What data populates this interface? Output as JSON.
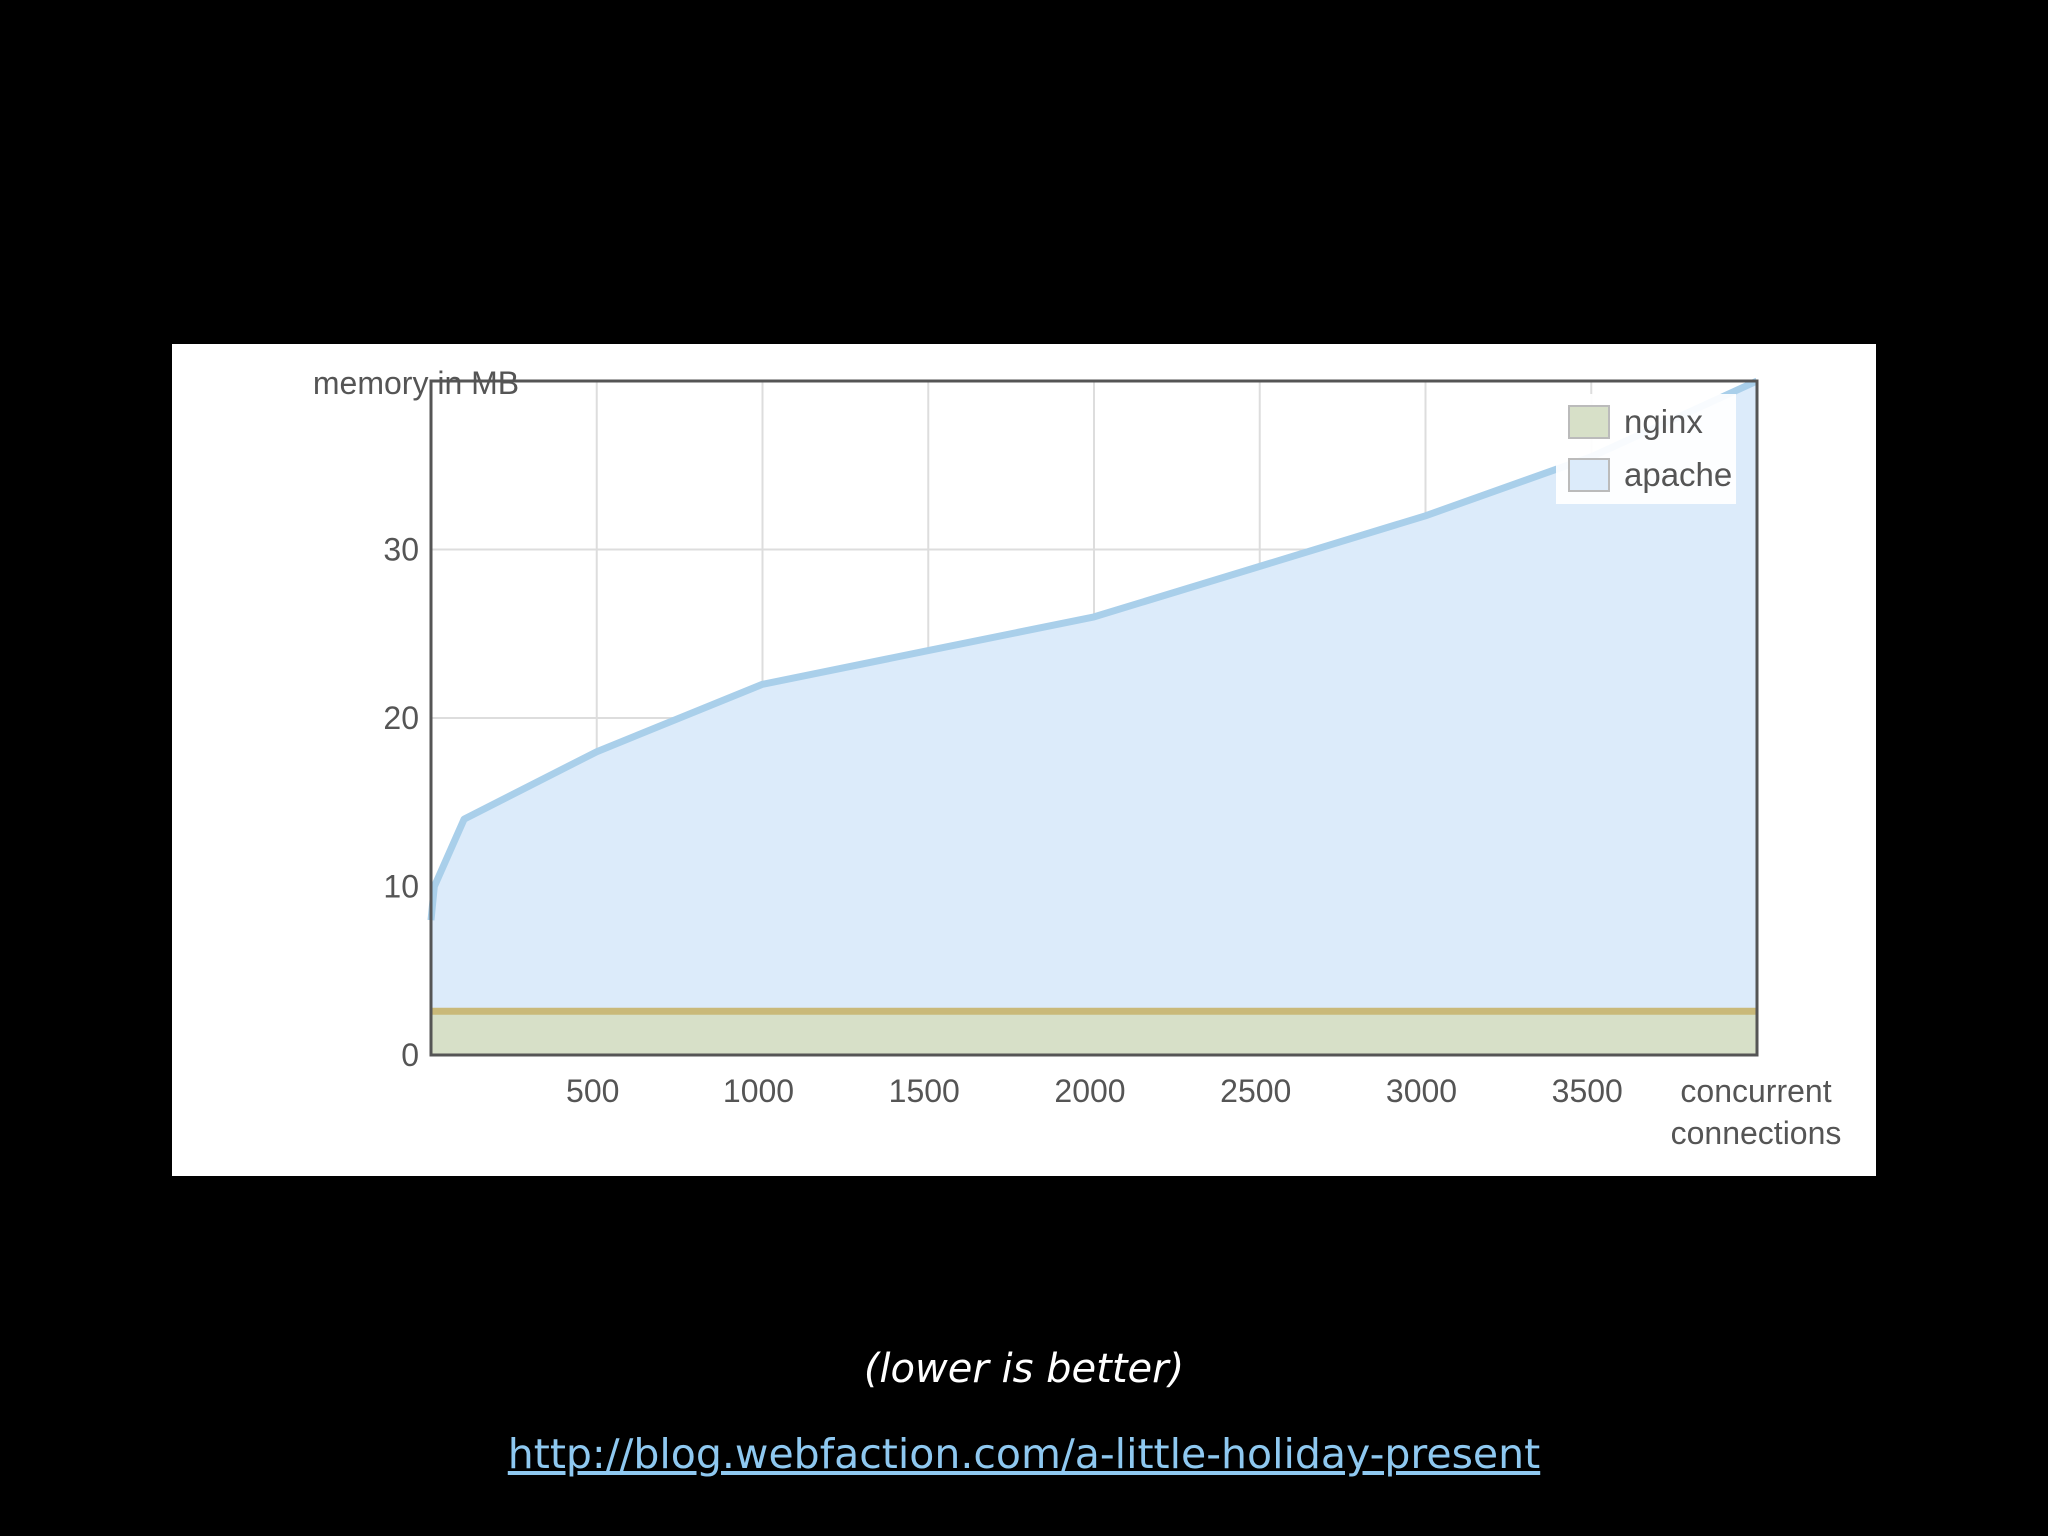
{
  "chart_data": {
    "type": "area",
    "ylabel": "memory in MB",
    "xlabel_lines": [
      "concurrent",
      "connections"
    ],
    "xlim": [
      0,
      4000
    ],
    "ylim": [
      0,
      40
    ],
    "x_ticks": [
      500,
      1000,
      1500,
      2000,
      2500,
      3000,
      3500
    ],
    "y_ticks": [
      0,
      10,
      20,
      30
    ],
    "grid": true,
    "legend_position": "top-right",
    "series": [
      {
        "name": "nginx",
        "color": "#c9b979",
        "fill": "#d7e0c8",
        "x": [
          0,
          500,
          1000,
          1500,
          2000,
          2500,
          3000,
          3500,
          4000
        ],
        "y": [
          2.6,
          2.6,
          2.6,
          2.6,
          2.6,
          2.6,
          2.6,
          2.6,
          2.6
        ]
      },
      {
        "name": "apache",
        "color": "#a9cfea",
        "fill": "#dcebfa",
        "x": [
          0,
          10,
          100,
          500,
          1000,
          1500,
          2000,
          2500,
          3000,
          3500,
          4000
        ],
        "y": [
          8,
          10,
          14,
          18,
          22,
          24,
          26,
          29,
          32,
          35.5,
          40
        ]
      }
    ]
  },
  "caption": "(lower is better)",
  "source_url": "http://blog.webfaction.com/a-little-holiday-present"
}
